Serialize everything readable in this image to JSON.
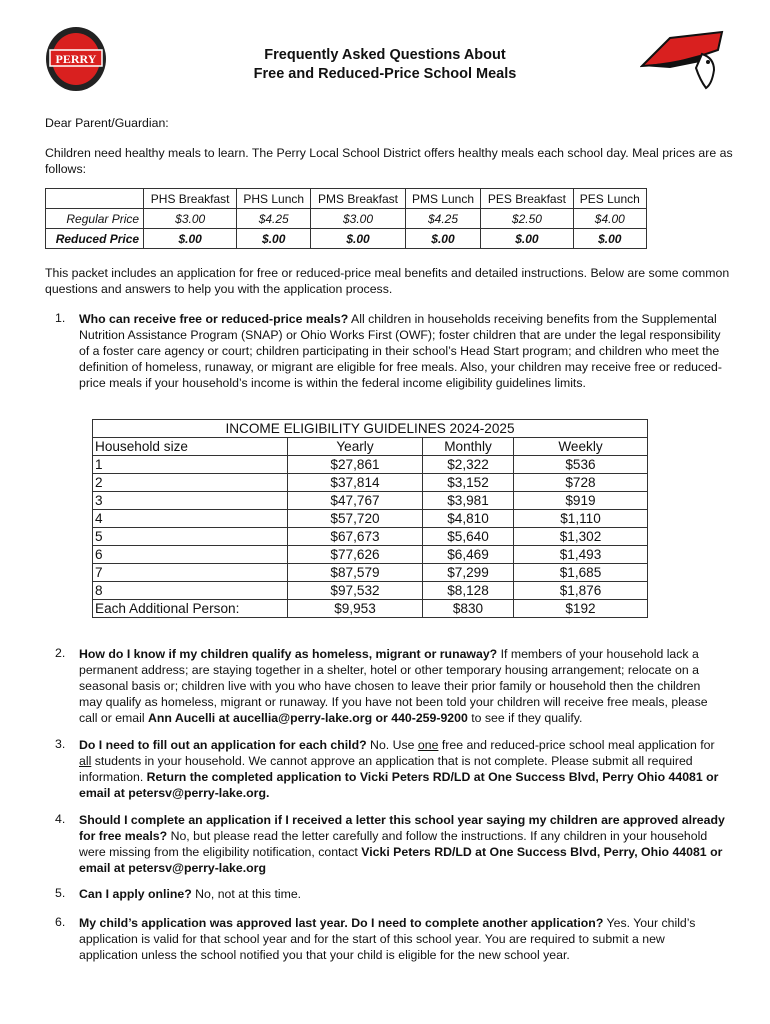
{
  "logos": {
    "left_text": "PERRY LOCAL SCHOOLS",
    "brand_red": "#d9201f"
  },
  "header": {
    "title_line1": "Frequently Asked Questions About",
    "title_line2": "Free and Reduced-Price School Meals"
  },
  "greeting": "Dear Parent/Guardian:",
  "intro": "Children need healthy meals to learn.  The Perry Local School District offers healthy meals each school day. Meal prices are as follows:",
  "price_table": {
    "columns": [
      "PHS Breakfast",
      "PHS Lunch",
      "PMS Breakfast",
      "PMS Lunch",
      "PES Breakfast",
      "PES Lunch"
    ],
    "rows": [
      {
        "label": "Regular Price",
        "values": [
          "$3.00",
          "$4.25",
          "$3.00",
          "$4.25",
          "$2.50",
          "$4.00"
        ]
      },
      {
        "label": "Reduced Price",
        "values": [
          "$.00",
          "$.00",
          "$.00",
          "$.00",
          "$.00",
          "$.00"
        ]
      }
    ]
  },
  "packet_text": "This packet includes an application for free or reduced-price meal benefits and detailed instructions. Below are some common questions and answers to help you with the application process.",
  "income_table": {
    "title": "INCOME ELIGIBILITY GUIDELINES 2024-2025",
    "headers": [
      "Household size",
      "Yearly",
      "Monthly",
      "Weekly"
    ],
    "rows": [
      [
        "1",
        "$27,861",
        "$2,322",
        "$536"
      ],
      [
        "2",
        "$37,814",
        "$3,152",
        "$728"
      ],
      [
        "3",
        "$47,767",
        "$3,981",
        "$919"
      ],
      [
        "4",
        "$57,720",
        "$4,810",
        "$1,110"
      ],
      [
        "5",
        "$67,673",
        "$5,640",
        "$1,302"
      ],
      [
        "6",
        "$77,626",
        "$6,469",
        "$1,493"
      ],
      [
        "7",
        "$87,579",
        "$7,299",
        "$1,685"
      ],
      [
        "8",
        "$97,532",
        "$8,128",
        "$1,876"
      ],
      [
        "Each Additional Person:",
        "$9,953",
        "$830",
        "$192"
      ]
    ]
  },
  "faq": [
    {
      "num": "1.",
      "segments": [
        {
          "t": "Who can receive free or reduced-price meals?",
          "b": true
        },
        {
          "t": " All children in households receiving benefits from the Supplemental Nutrition Assistance Program (SNAP) or Ohio Works First (OWF); foster children that are under the legal responsibility of a foster care agency or court; children participating in their school’s Head Start program; and children who meet the definition of homeless, runaway, or migrant are eligible for free meals. Also, your children may receive free or reduced-price meals if your household’s income is within the federal income eligibility guidelines limits."
        }
      ]
    },
    {
      "num": "2.",
      "segments": [
        {
          "t": "How do I know if my children qualify as homeless, migrant or runaway?",
          "b": true
        },
        {
          "t": " If members of your household lack a permanent address; are staying together in a shelter, hotel or other temporary housing arrangement; relocate on a seasonal basis or; children live with you who have chosen to leave their prior family or household then the children may qualify as homeless, migrant or runaway. If you have not been told your children will receive free meals, please call or email "
        },
        {
          "t": "Ann Aucelli at aucellia@perry-lake.org or 440-259-9200",
          "b": true
        },
        {
          "t": " to see if they qualify."
        }
      ]
    },
    {
      "num": "3.",
      "segments": [
        {
          "t": "Do I need to fill out an application for each child?",
          "b": true
        },
        {
          "t": "  No. Use "
        },
        {
          "t": "one",
          "u": true
        },
        {
          "t": " free and reduced-price school meal application for "
        },
        {
          "t": "all",
          "u": true
        },
        {
          "t": " students in your household. We cannot approve an application that is not complete. Please submit all required information. "
        },
        {
          "t": "Return the completed application to Vicki Peters RD/LD at One Success Blvd, Perry Ohio 44081 or email at petersv@perry-lake.org.",
          "b": true
        }
      ]
    },
    {
      "num": "4.",
      "segments": [
        {
          "t": "Should I complete an application if I received a letter this school year saying my children are approved already for free meals?",
          "b": true
        },
        {
          "t": " No, but please read the letter carefully and follow the instructions. If any children in your household were missing from the eligibility notification, contact "
        },
        {
          "t": "Vicki Peters RD/LD at One Success Blvd, Perry, Ohio 44081 or email at petersv@perry-lake.org",
          "b": true
        }
      ]
    },
    {
      "num": "5.",
      "segments": [
        {
          "t": "Can I apply online?",
          "b": true
        },
        {
          "t": " No, not at this time."
        }
      ]
    },
    {
      "num": "6.",
      "segments": [
        {
          "t": "My child’s application was approved last year. Do I need to complete another application?",
          "b": true
        },
        {
          "t": " Yes. Your child’s application is valid for that school year and for the start of this school year. You are required to submit a new application unless the school notified you that your child is eligible for the new school year."
        }
      ]
    }
  ]
}
